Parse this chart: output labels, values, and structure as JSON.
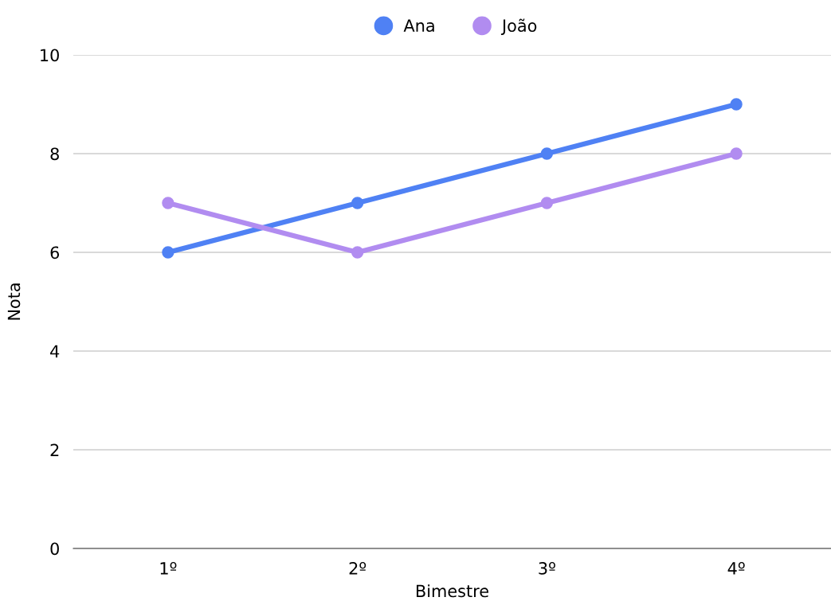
{
  "chart_data": {
    "type": "line",
    "xlabel": "Bimestre",
    "ylabel": "Nota",
    "categories": [
      "1º",
      "2º",
      "3º",
      "4º"
    ],
    "series": [
      {
        "name": "Ana",
        "color": "#4f81f4",
        "values": [
          6,
          7,
          8,
          9
        ]
      },
      {
        "name": "João",
        "color": "#b18cf0",
        "values": [
          7,
          6,
          7,
          8
        ]
      }
    ],
    "ylim": [
      0,
      10
    ],
    "yticks": [
      0,
      2,
      4,
      6,
      8,
      10
    ],
    "grid": "y",
    "legend": "top",
    "marker": "circle",
    "line_style": "solid"
  }
}
